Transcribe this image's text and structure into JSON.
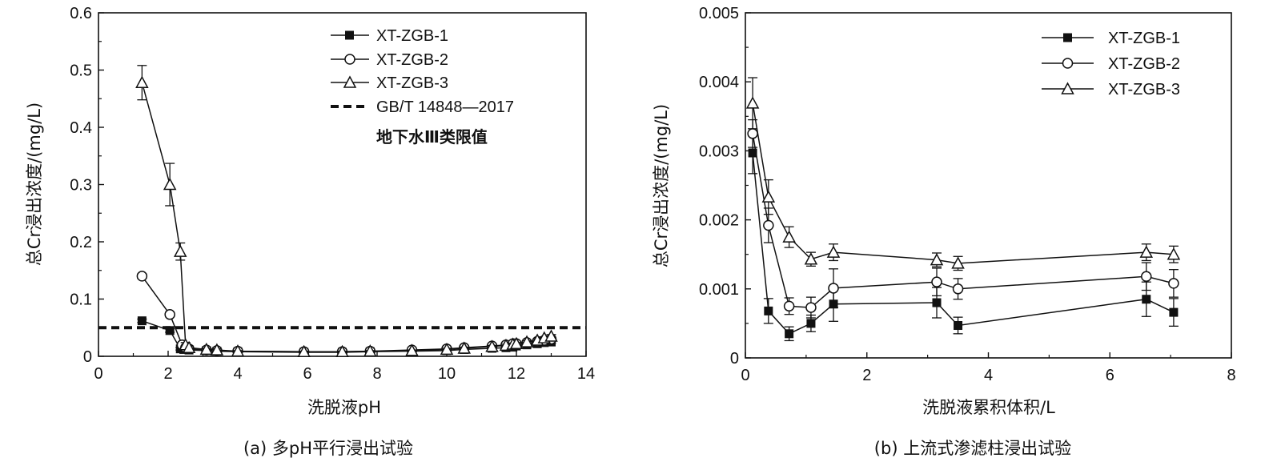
{
  "chart_data": [
    {
      "type": "line",
      "caption": "(a)  多pH平行浸出试验",
      "xlabel": "洗脱液pH",
      "ylabel": "总Cr浸出浓度/(mg/L)",
      "xlim": [
        0,
        14
      ],
      "ylim": [
        0,
        0.6
      ],
      "xticks": [
        0,
        2,
        4,
        6,
        8,
        10,
        12,
        14
      ],
      "yticks": [
        0,
        0.1,
        0.2,
        0.3,
        0.4,
        0.5,
        0.6
      ],
      "xtick_labels": [
        "0",
        "2",
        "4",
        "6",
        "8",
        "10",
        "12",
        "14"
      ],
      "ytick_labels": [
        "0",
        "0.1",
        "0.2",
        "0.3",
        "0.4",
        "0.5",
        "0.6"
      ],
      "grid": false,
      "legend_position": "top-right",
      "series": [
        {
          "name": "XT-ZGB-1",
          "marker": "filled-square",
          "x": [
            1.25,
            2.05,
            2.35,
            2.45,
            2.6,
            3.1,
            3.4,
            4.0,
            5.9,
            7.0,
            7.8,
            9.0,
            10.0,
            10.5,
            11.3,
            11.7,
            11.9,
            12.0,
            12.3,
            12.6,
            12.8,
            13.0
          ],
          "y": [
            0.062,
            0.045,
            0.013,
            0.012,
            0.011,
            0.01,
            0.009,
            0.008,
            0.007,
            0.007,
            0.008,
            0.009,
            0.01,
            0.012,
            0.014,
            0.015,
            0.016,
            0.018,
            0.02,
            0.022,
            0.024,
            0.025
          ],
          "error": [
            0.003,
            0.003,
            0.002,
            0.002,
            0.002,
            0.001,
            0.001,
            0.001,
            0.001,
            0.001,
            0.001,
            0.001,
            0.002,
            0.002,
            0.002,
            0.002,
            0.002,
            0.002,
            0.002,
            0.002,
            0.002,
            0.002
          ]
        },
        {
          "name": "XT-ZGB-2",
          "marker": "open-circle",
          "x": [
            1.25,
            2.05,
            2.4,
            2.5,
            2.6,
            3.1,
            3.4,
            4.0,
            5.9,
            7.0,
            7.8,
            9.0,
            10.0,
            10.5,
            11.3,
            11.7,
            11.9,
            12.0,
            12.3,
            12.6,
            12.8,
            13.0
          ],
          "y": [
            0.14,
            0.073,
            0.02,
            0.015,
            0.013,
            0.011,
            0.01,
            0.009,
            0.008,
            0.008,
            0.009,
            0.011,
            0.013,
            0.015,
            0.018,
            0.02,
            0.022,
            0.022,
            0.024,
            0.026,
            0.028,
            0.03
          ],
          "error": [
            0.004,
            0.004,
            0.003,
            0.002,
            0.002,
            0.001,
            0.001,
            0.001,
            0.001,
            0.001,
            0.001,
            0.001,
            0.002,
            0.002,
            0.002,
            0.002,
            0.002,
            0.002,
            0.002,
            0.002,
            0.002,
            0.002
          ]
        },
        {
          "name": "XT-ZGB-3",
          "marker": "open-triangle",
          "x": [
            1.25,
            2.05,
            2.35,
            2.5,
            2.6,
            3.1,
            3.4,
            4.0,
            5.9,
            7.0,
            7.8,
            9.0,
            10.0,
            10.5,
            11.3,
            11.7,
            11.9,
            12.0,
            12.3,
            12.6,
            12.8,
            13.0
          ],
          "y": [
            0.478,
            0.3,
            0.183,
            0.02,
            0.015,
            0.012,
            0.011,
            0.009,
            0.008,
            0.008,
            0.009,
            0.01,
            0.012,
            0.014,
            0.017,
            0.019,
            0.021,
            0.022,
            0.025,
            0.028,
            0.032,
            0.035
          ],
          "error": [
            0.03,
            0.037,
            0.015,
            0.004,
            0.003,
            0.002,
            0.002,
            0.001,
            0.001,
            0.001,
            0.001,
            0.001,
            0.002,
            0.002,
            0.002,
            0.002,
            0.002,
            0.002,
            0.002,
            0.002,
            0.002,
            0.003
          ]
        }
      ],
      "reference_line": {
        "label": "GB/T 14848—2017",
        "note": "地下水Ⅲ类限值",
        "y": 0.05,
        "style": "dashed"
      }
    },
    {
      "type": "line",
      "caption": "(b)  上流式渗滤柱浸出试验",
      "xlabel": "洗脱液累积体积/L",
      "ylabel": "总Cr浸出浓度/(mg/L)",
      "xlim": [
        0,
        8
      ],
      "ylim": [
        0,
        0.005
      ],
      "xticks": [
        0,
        2,
        4,
        6,
        8
      ],
      "yticks": [
        0,
        0.001,
        0.002,
        0.003,
        0.004,
        0.005
      ],
      "xtick_labels": [
        "0",
        "2",
        "4",
        "6",
        "8"
      ],
      "ytick_labels": [
        "0",
        "0.001",
        "0.002",
        "0.003",
        "0.004",
        "0.005"
      ],
      "grid": false,
      "legend_position": "top-right",
      "series": [
        {
          "name": "XT-ZGB-1",
          "marker": "filled-square",
          "x": [
            0.12,
            0.38,
            0.72,
            1.08,
            1.45,
            3.15,
            3.5,
            6.6,
            7.05
          ],
          "y": [
            0.00297,
            0.00068,
            0.00035,
            0.0005,
            0.00078,
            0.0008,
            0.00047,
            0.00085,
            0.00066
          ],
          "error": [
            0.0003,
            0.00018,
            0.0001,
            0.00012,
            0.00025,
            0.00022,
            0.00012,
            0.00025,
            0.0002
          ]
        },
        {
          "name": "XT-ZGB-2",
          "marker": "open-circle",
          "x": [
            0.12,
            0.38,
            0.72,
            1.08,
            1.45,
            3.15,
            3.5,
            6.6,
            7.05
          ],
          "y": [
            0.00325,
            0.00192,
            0.00075,
            0.00073,
            0.00101,
            0.0011,
            0.001,
            0.00118,
            0.00108
          ],
          "error": [
            0.0002,
            0.00025,
            0.00012,
            0.00015,
            0.00028,
            0.0002,
            0.00015,
            0.0002,
            0.0002
          ]
        },
        {
          "name": "XT-ZGB-3",
          "marker": "open-triangle",
          "x": [
            0.12,
            0.38,
            0.72,
            1.08,
            1.45,
            3.15,
            3.5,
            6.6,
            7.05
          ],
          "y": [
            0.00369,
            0.00233,
            0.00175,
            0.00143,
            0.00153,
            0.00142,
            0.00137,
            0.00153,
            0.0015
          ],
          "error": [
            0.00037,
            0.00025,
            0.00015,
            0.0001,
            0.00012,
            0.0001,
            0.0001,
            0.00012,
            0.00012
          ]
        }
      ]
    }
  ]
}
